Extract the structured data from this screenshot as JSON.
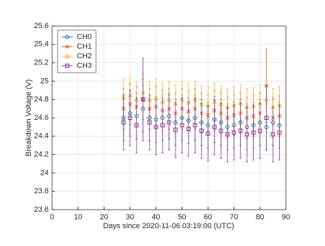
{
  "chart_data": {
    "type": "errorbar",
    "xlabel": "Days since 2020-11-06 03:19:00 (UTC)",
    "ylabel": "Breakdown Voltage (V)",
    "x": [
      27.5,
      30,
      32.5,
      35,
      37.5,
      40,
      42.5,
      45,
      47.5,
      50,
      52.5,
      55,
      57.5,
      60,
      62.5,
      65,
      67.5,
      70,
      72.5,
      75,
      77.5,
      80,
      82.5,
      85,
      87.5
    ],
    "series": [
      {
        "name": "CH0",
        "color": "#0072bd",
        "marker": "circle",
        "values": [
          24.6,
          24.65,
          24.62,
          24.7,
          24.6,
          24.58,
          24.6,
          24.62,
          24.55,
          24.6,
          24.57,
          24.6,
          24.55,
          24.52,
          24.58,
          24.55,
          24.5,
          24.52,
          24.55,
          24.5,
          24.52,
          24.55,
          24.5,
          24.55,
          24.52
        ],
        "errors": [
          0.25,
          0.25,
          0.25,
          0.25,
          0.25,
          0.25,
          0.25,
          0.25,
          0.25,
          0.25,
          0.25,
          0.25,
          0.25,
          0.25,
          0.25,
          0.25,
          0.25,
          0.25,
          0.25,
          0.25,
          0.25,
          0.25,
          0.25,
          0.25,
          0.25
        ]
      },
      {
        "name": "CH1",
        "color": "#d95319",
        "marker": "x",
        "values": [
          24.7,
          24.75,
          24.72,
          24.8,
          24.7,
          24.72,
          24.68,
          24.7,
          24.65,
          24.7,
          24.67,
          24.7,
          24.65,
          24.63,
          24.68,
          24.65,
          24.6,
          24.63,
          24.65,
          24.6,
          24.62,
          24.65,
          24.95,
          24.6,
          24.62
        ],
        "errors": [
          0.22,
          0.22,
          0.22,
          0.22,
          0.22,
          0.22,
          0.22,
          0.22,
          0.22,
          0.22,
          0.22,
          0.22,
          0.22,
          0.22,
          0.22,
          0.22,
          0.22,
          0.22,
          0.22,
          0.22,
          0.22,
          0.22,
          0.4,
          0.22,
          0.22
        ]
      },
      {
        "name": "CH2",
        "color": "#edb120",
        "marker": "triangle",
        "values": [
          24.82,
          24.85,
          24.8,
          24.88,
          24.8,
          24.82,
          24.78,
          24.8,
          24.76,
          24.8,
          24.77,
          24.8,
          24.75,
          24.74,
          24.78,
          24.75,
          24.72,
          24.74,
          24.76,
          24.72,
          24.73,
          24.76,
          24.8,
          24.72,
          24.74
        ],
        "errors": [
          0.2,
          0.2,
          0.2,
          0.2,
          0.2,
          0.2,
          0.2,
          0.2,
          0.2,
          0.2,
          0.2,
          0.2,
          0.2,
          0.2,
          0.2,
          0.2,
          0.2,
          0.2,
          0.2,
          0.2,
          0.2,
          0.2,
          0.2,
          0.2,
          0.2
        ]
      },
      {
        "name": "CH3",
        "color": "#7e2f8e",
        "marker": "square",
        "values": [
          24.55,
          24.6,
          24.52,
          24.8,
          24.55,
          24.5,
          24.52,
          24.55,
          24.47,
          24.52,
          24.48,
          24.52,
          24.46,
          24.43,
          24.5,
          24.46,
          24.42,
          24.44,
          24.46,
          24.42,
          24.44,
          24.46,
          24.6,
          24.42,
          24.44
        ],
        "errors": [
          0.3,
          0.3,
          0.3,
          0.45,
          0.3,
          0.3,
          0.3,
          0.3,
          0.3,
          0.3,
          0.3,
          0.3,
          0.3,
          0.3,
          0.3,
          0.3,
          0.3,
          0.3,
          0.3,
          0.3,
          0.3,
          0.3,
          0.35,
          0.3,
          0.3
        ]
      }
    ],
    "xlim": [
      0,
      90
    ],
    "xticks": [
      0,
      10,
      20,
      30,
      40,
      50,
      60,
      70,
      80,
      90
    ],
    "ylim": [
      23.6,
      25.6
    ],
    "yticks": [
      23.6,
      23.8,
      24,
      24.2,
      24.4,
      24.6,
      24.8,
      25,
      25.2,
      25.4,
      25.6
    ],
    "grid": true,
    "legend_position": "upper-left"
  }
}
